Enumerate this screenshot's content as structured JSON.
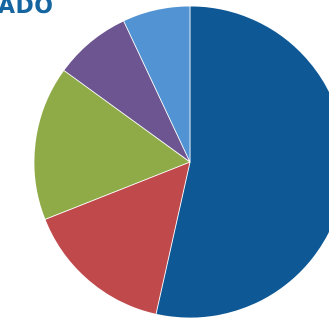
{
  "title_fragment": "ADO",
  "colors": {
    "title": "#1565a0"
  },
  "chart_data": {
    "type": "pie",
    "title": "ADO",
    "start_angle_deg": 0,
    "direction": "clockwise",
    "slices": [
      {
        "value": 53.5,
        "color": "#0f5896"
      },
      {
        "value": 15.5,
        "color": "#c0494b"
      },
      {
        "value": 16.0,
        "color": "#8fab48"
      },
      {
        "value": 8.0,
        "color": "#6c5590"
      },
      {
        "value": 7.0,
        "color": "#5293d3"
      }
    ]
  }
}
